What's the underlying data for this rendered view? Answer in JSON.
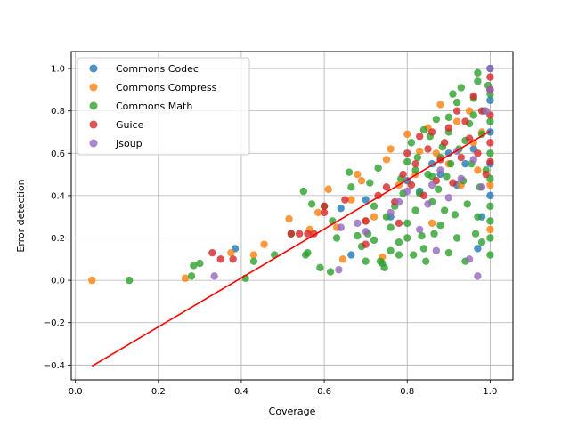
{
  "chart_data": {
    "type": "scatter",
    "xlabel": "Coverage",
    "ylabel": "Error detection",
    "xlim": [
      -0.01,
      1.055
    ],
    "ylim": [
      -0.47,
      1.08
    ],
    "xticks": [
      0.0,
      0.2,
      0.4,
      0.6,
      0.8,
      1.0
    ],
    "yticks": [
      -0.4,
      -0.2,
      0.0,
      0.2,
      0.4,
      0.6,
      0.8,
      1.0
    ],
    "xtick_labels": [
      "0.0",
      "0.2",
      "0.4",
      "0.6",
      "0.8",
      "1.0"
    ],
    "ytick_labels": [
      "−0.4",
      "−0.2",
      "0.0",
      "0.2",
      "0.4",
      "0.6",
      "0.8",
      "1.0"
    ],
    "grid": true,
    "legend_position": "upper left",
    "series": [
      {
        "name": "Commons Codec",
        "color": "#1f77b4",
        "points": [
          [
            0.385,
            0.15
          ],
          [
            0.64,
            0.34
          ],
          [
            0.665,
            0.12
          ],
          [
            0.7,
            0.38
          ],
          [
            0.76,
            0.3
          ],
          [
            0.8,
            0.47
          ],
          [
            0.83,
            0.42
          ],
          [
            0.86,
            0.55
          ],
          [
            0.88,
            0.5
          ],
          [
            0.9,
            0.6
          ],
          [
            0.92,
            0.45
          ],
          [
            0.94,
            0.55
          ],
          [
            0.96,
            0.62
          ],
          [
            0.97,
            0.15
          ],
          [
            0.98,
            0.3
          ],
          [
            1.0,
            0.4
          ],
          [
            1.0,
            0.55
          ],
          [
            1.0,
            0.7
          ],
          [
            1.0,
            0.85
          ],
          [
            1.0,
            1.0
          ]
        ]
      },
      {
        "name": "Commons Compress",
        "color": "#ff7f0e",
        "points": [
          [
            0.04,
            0.0
          ],
          [
            0.265,
            0.01
          ],
          [
            0.375,
            0.13
          ],
          [
            0.43,
            0.12
          ],
          [
            0.455,
            0.17
          ],
          [
            0.515,
            0.29
          ],
          [
            0.565,
            0.24
          ],
          [
            0.585,
            0.32
          ],
          [
            0.61,
            0.43
          ],
          [
            0.63,
            0.25
          ],
          [
            0.645,
            0.1
          ],
          [
            0.665,
            0.38
          ],
          [
            0.68,
            0.5
          ],
          [
            0.69,
            0.47
          ],
          [
            0.7,
            0.28
          ],
          [
            0.72,
            0.3
          ],
          [
            0.74,
            0.11
          ],
          [
            0.75,
            0.57
          ],
          [
            0.76,
            0.62
          ],
          [
            0.78,
            0.45
          ],
          [
            0.8,
            0.69
          ],
          [
            0.82,
            0.5
          ],
          [
            0.83,
            0.61
          ],
          [
            0.85,
            0.72
          ],
          [
            0.86,
            0.27
          ],
          [
            0.87,
            0.6
          ],
          [
            0.88,
            0.83
          ],
          [
            0.9,
            0.55
          ],
          [
            0.92,
            0.75
          ],
          [
            0.93,
            0.45
          ],
          [
            0.95,
            0.8
          ],
          [
            0.96,
            0.65
          ],
          [
            0.97,
            0.52
          ],
          [
            0.98,
            0.7
          ],
          [
            1.0,
            0.24
          ],
          [
            1.0,
            0.45
          ],
          [
            1.0,
            0.9
          ]
        ]
      },
      {
        "name": "Commons Math",
        "color": "#2ca02c",
        "points": [
          [
            0.13,
            0.0
          ],
          [
            0.28,
            0.02
          ],
          [
            0.285,
            0.07
          ],
          [
            0.3,
            0.08
          ],
          [
            0.41,
            0.01
          ],
          [
            0.43,
            0.09
          ],
          [
            0.48,
            0.12
          ],
          [
            0.52,
            0.22
          ],
          [
            0.55,
            0.42
          ],
          [
            0.555,
            0.12
          ],
          [
            0.56,
            0.13
          ],
          [
            0.57,
            0.36
          ],
          [
            0.59,
            0.06
          ],
          [
            0.6,
            0.35
          ],
          [
            0.615,
            0.04
          ],
          [
            0.62,
            0.28
          ],
          [
            0.63,
            0.2
          ],
          [
            0.66,
            0.51
          ],
          [
            0.665,
            0.44
          ],
          [
            0.68,
            0.21
          ],
          [
            0.69,
            0.16
          ],
          [
            0.7,
            0.09
          ],
          [
            0.705,
            0.22
          ],
          [
            0.71,
            0.46
          ],
          [
            0.72,
            0.19
          ],
          [
            0.73,
            0.53
          ],
          [
            0.735,
            0.09
          ],
          [
            0.74,
            0.08
          ],
          [
            0.745,
            0.06
          ],
          [
            0.75,
            0.3
          ],
          [
            0.76,
            0.14
          ],
          [
            0.77,
            0.35
          ],
          [
            0.78,
            0.12
          ],
          [
            0.785,
            0.48
          ],
          [
            0.79,
            0.41
          ],
          [
            0.8,
            0.2
          ],
          [
            0.8,
            0.27
          ],
          [
            0.81,
            0.65
          ],
          [
            0.815,
            0.12
          ],
          [
            0.82,
            0.33
          ],
          [
            0.825,
            0.58
          ],
          [
            0.83,
            0.41
          ],
          [
            0.835,
            0.21
          ],
          [
            0.84,
            0.15
          ],
          [
            0.845,
            0.09
          ],
          [
            0.85,
            0.5
          ],
          [
            0.855,
            0.68
          ],
          [
            0.86,
            0.37
          ],
          [
            0.865,
            0.22
          ],
          [
            0.87,
            0.76
          ],
          [
            0.875,
            0.43
          ],
          [
            0.88,
            0.26
          ],
          [
            0.885,
            0.63
          ],
          [
            0.89,
            0.33
          ],
          [
            0.895,
            0.49
          ],
          [
            0.9,
            0.13
          ],
          [
            0.9,
            0.7
          ],
          [
            0.905,
            0.55
          ],
          [
            0.91,
            0.88
          ],
          [
            0.915,
            0.31
          ],
          [
            0.92,
            0.2
          ],
          [
            0.925,
            0.62
          ],
          [
            0.93,
            0.91
          ],
          [
            0.935,
            0.47
          ],
          [
            0.94,
            0.09
          ],
          [
            0.945,
            0.36
          ],
          [
            0.95,
            0.74
          ],
          [
            0.955,
            0.55
          ],
          [
            0.96,
            0.86
          ],
          [
            0.965,
            0.22
          ],
          [
            0.97,
            0.3
          ],
          [
            0.97,
            0.94
          ],
          [
            0.975,
            0.44
          ],
          [
            0.98,
            0.18
          ],
          [
            0.98,
            0.69
          ],
          [
            0.985,
            0.8
          ],
          [
            0.99,
            0.52
          ],
          [
            0.995,
            0.92
          ],
          [
            1.0,
            0.12
          ],
          [
            1.0,
            0.2
          ],
          [
            1.0,
            0.28
          ],
          [
            1.0,
            0.35
          ],
          [
            1.0,
            0.48
          ],
          [
            1.0,
            0.6
          ],
          [
            1.0,
            0.75
          ],
          [
            1.0,
            0.88
          ],
          [
            0.97,
            0.98
          ],
          [
            0.96,
            0.78
          ],
          [
            0.94,
            0.66
          ],
          [
            0.92,
            0.84
          ],
          [
            0.9,
            0.77
          ],
          [
            0.88,
            0.58
          ],
          [
            0.86,
            0.49
          ],
          [
            0.84,
            0.71
          ],
          [
            0.82,
            0.52
          ],
          [
            0.8,
            0.56
          ],
          [
            0.78,
            0.18
          ],
          [
            0.76,
            0.25
          ],
          [
            0.72,
            0.35
          ]
        ]
      },
      {
        "name": "Guice",
        "color": "#d62728",
        "points": [
          [
            0.33,
            0.13
          ],
          [
            0.35,
            0.1
          ],
          [
            0.38,
            0.1
          ],
          [
            0.52,
            0.22
          ],
          [
            0.54,
            0.22
          ],
          [
            0.56,
            0.22
          ],
          [
            0.575,
            0.22
          ],
          [
            0.6,
            0.35
          ],
          [
            0.6,
            0.32
          ],
          [
            0.65,
            0.38
          ],
          [
            0.7,
            0.17
          ],
          [
            0.7,
            0.28
          ],
          [
            0.73,
            0.4
          ],
          [
            0.75,
            0.44
          ],
          [
            0.77,
            0.37
          ],
          [
            0.78,
            0.27
          ],
          [
            0.79,
            0.5
          ],
          [
            0.8,
            0.6
          ],
          [
            0.81,
            0.45
          ],
          [
            0.82,
            0.55
          ],
          [
            0.83,
            0.68
          ],
          [
            0.84,
            0.4
          ],
          [
            0.85,
            0.62
          ],
          [
            0.86,
            0.7
          ],
          [
            0.87,
            0.47
          ],
          [
            0.88,
            0.57
          ],
          [
            0.89,
            0.65
          ],
          [
            0.9,
            0.72
          ],
          [
            0.91,
            0.46
          ],
          [
            0.92,
            0.8
          ],
          [
            0.93,
            0.58
          ],
          [
            0.94,
            0.75
          ],
          [
            0.95,
            0.67
          ],
          [
            0.96,
            0.87
          ],
          [
            0.97,
            0.6
          ],
          [
            0.98,
            0.8
          ],
          [
            0.99,
            0.5
          ],
          [
            1.0,
            0.56
          ],
          [
            1.0,
            0.65
          ],
          [
            1.0,
            0.78
          ],
          [
            1.0,
            0.9
          ],
          [
            1.0,
            0.96
          ]
        ]
      },
      {
        "name": "Jsoup",
        "color": "#9467bd",
        "points": [
          [
            0.335,
            0.02
          ],
          [
            0.635,
            0.05
          ],
          [
            0.64,
            0.25
          ],
          [
            0.68,
            0.27
          ],
          [
            0.7,
            0.23
          ],
          [
            0.76,
            0.32
          ],
          [
            0.78,
            0.37
          ],
          [
            0.8,
            0.42
          ],
          [
            0.83,
            0.24
          ],
          [
            0.85,
            0.36
          ],
          [
            0.86,
            0.45
          ],
          [
            0.87,
            0.14
          ],
          [
            0.88,
            0.52
          ],
          [
            0.9,
            0.39
          ],
          [
            0.92,
            0.61
          ],
          [
            0.93,
            0.48
          ],
          [
            0.95,
            0.1
          ],
          [
            0.96,
            0.57
          ],
          [
            0.97,
            0.02
          ],
          [
            0.98,
            0.44
          ],
          [
            0.99,
            0.8
          ],
          [
            1.0,
            0.9
          ],
          [
            1.0,
            1.0
          ]
        ]
      }
    ],
    "regression_line": {
      "color": "#ff0000",
      "from": [
        0.04,
        -0.405
      ],
      "to": [
        1.0,
        0.705
      ]
    }
  }
}
